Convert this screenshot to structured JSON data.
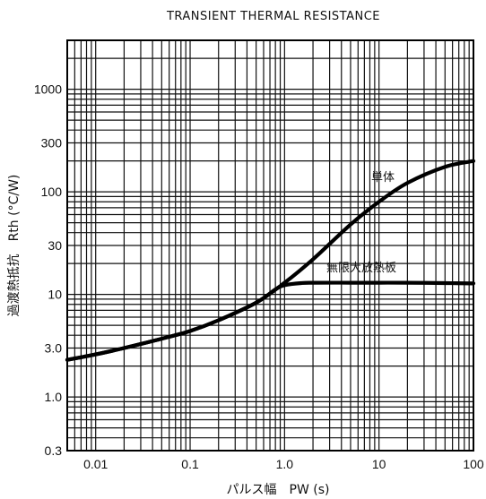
{
  "chart_data": {
    "type": "line",
    "title": "TRANSIENT THERMAL RESISTANCE",
    "xlabel": "パルス幅　PW (s)",
    "ylabel": "過渡熱抵抗　Rth (°C/W)",
    "x_scale": "log",
    "y_scale": "log",
    "xlim": [
      0.005,
      100
    ],
    "ylim": [
      0.3,
      3000
    ],
    "grid": true,
    "x_ticks": [
      0.01,
      0.1,
      1.0,
      10,
      100
    ],
    "x_tick_labels": [
      "0.01",
      "0.1",
      "1.0",
      "10",
      "100"
    ],
    "y_ticks": [
      0.3,
      1.0,
      3.0,
      10,
      30,
      100,
      300,
      1000
    ],
    "y_tick_labels": [
      "0.3",
      "1.0",
      "3.0",
      "10",
      "30",
      "100",
      "300",
      "1000"
    ],
    "series": [
      {
        "name": "単体",
        "x": [
          0.005,
          0.01,
          0.02,
          0.05,
          0.1,
          0.2,
          0.5,
          1,
          2,
          5,
          10,
          20,
          50,
          100
        ],
        "y": [
          2.3,
          2.6,
          3.0,
          3.7,
          4.4,
          5.6,
          8.3,
          13,
          22,
          48,
          80,
          122,
          175,
          200
        ]
      },
      {
        "name": "無限大放熱板",
        "x": [
          0.005,
          0.01,
          0.02,
          0.05,
          0.1,
          0.2,
          0.5,
          0.8,
          1,
          1.5,
          2,
          5,
          10,
          20,
          50,
          100
        ],
        "y": [
          2.3,
          2.6,
          3.0,
          3.7,
          4.4,
          5.6,
          8.3,
          11.2,
          12.3,
          12.9,
          13.0,
          13.0,
          13.0,
          13.0,
          12.9,
          12.8
        ]
      }
    ]
  }
}
